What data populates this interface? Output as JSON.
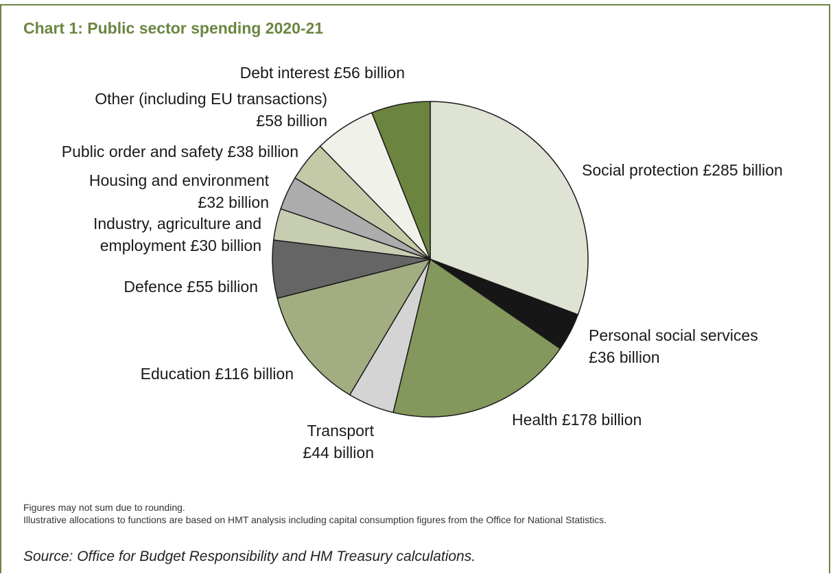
{
  "title": "Chart 1: Public sector spending 2020-21",
  "notes": [
    "Figures may not sum due to rounding.",
    "Illustrative allocations to functions are based on HMT analysis including capital consumption figures from the Office for National Statistics."
  ],
  "source": "Source: Office for Budget Responsibility and HM Treasury calculations.",
  "chart_data": {
    "type": "pie",
    "title": "Chart 1: Public sector spending 2020-21",
    "unit": "£ billion",
    "slices": [
      {
        "name": "Social protection",
        "value": 285,
        "color": "#dfe3d3",
        "label_lines": [
          "Social protection £285 billion"
        ]
      },
      {
        "name": "Personal social services",
        "value": 36,
        "color": "#161616",
        "label_lines": [
          "Personal social services",
          "£36 billion"
        ]
      },
      {
        "name": "Health",
        "value": 178,
        "color": "#84975c",
        "label_lines": [
          "Health £178 billion"
        ]
      },
      {
        "name": "Transport",
        "value": 44,
        "color": "#d4d4d4",
        "label_lines": [
          "Transport",
          "£44 billion"
        ]
      },
      {
        "name": "Education",
        "value": 116,
        "color": "#a2ae82",
        "label_lines": [
          "Education £116 billion"
        ]
      },
      {
        "name": "Defence",
        "value": 55,
        "color": "#656565",
        "label_lines": [
          "Defence £55 billion"
        ]
      },
      {
        "name": "Industry, agriculture and employment",
        "value": 30,
        "color": "#c6cdb1",
        "label_lines": [
          "Industry, agriculture and",
          "employment £30 billion"
        ]
      },
      {
        "name": "Housing and environment",
        "value": 32,
        "color": "#acacac",
        "label_lines": [
          "Housing and environment",
          "£32 billion"
        ]
      },
      {
        "name": "Public order and safety",
        "value": 38,
        "color": "#c4c9a8",
        "label_lines": [
          "Public order and safety £38 billion"
        ]
      },
      {
        "name": "Other (including EU transactions)",
        "value": 58,
        "color": "#f0f2ea",
        "label_lines": [
          "Other (including EU transactions)",
          "£58 billion"
        ]
      },
      {
        "name": "Debt interest",
        "value": 56,
        "color": "#6b8540",
        "label_lines": [
          "Debt interest £56 billion"
        ]
      }
    ]
  }
}
